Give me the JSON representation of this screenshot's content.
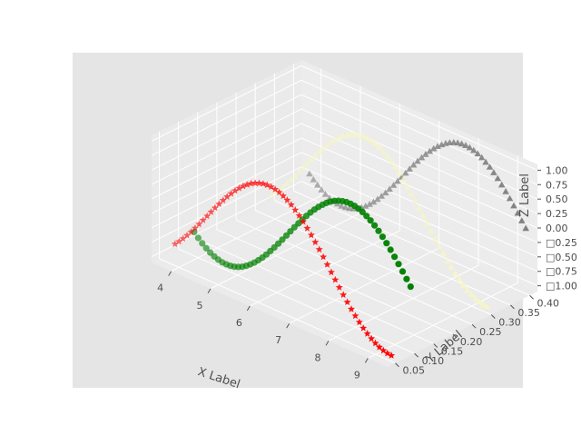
{
  "chart_data": {
    "type": "scatter3d",
    "title": "",
    "xlabel": "X Label",
    "ylabel": "Y Label",
    "zlabel": "Z Label",
    "xlim": [
      3.5,
      9.5
    ],
    "ylim": [
      0.03,
      0.42
    ],
    "zlim": [
      -1.1,
      1.1
    ],
    "x_ticks": [
      "4",
      "5",
      "6",
      "7",
      "8",
      "9"
    ],
    "y_ticks": [
      "0.05",
      "0.10",
      "0.15",
      "0.20",
      "0.25",
      "0.30",
      "0.35",
      "0.40"
    ],
    "z_ticks": [
      "1.00",
      "0.75",
      "0.50",
      "0.25",
      "0.00",
      "□0.25",
      "□0.50",
      "□0.75",
      "□1.00"
    ],
    "grid": true,
    "series": [
      {
        "name": "sin (green circles)",
        "marker": "circle",
        "color": "#008000",
        "function": "z = sin(x)",
        "x_range": [
          3.9,
          9.4
        ],
        "y": 0.1,
        "count": 55
      },
      {
        "name": "cos (red stars)",
        "marker": "star",
        "color": "#ff0000",
        "function": "z = cos(x)",
        "x_range": [
          3.9,
          9.4
        ],
        "y": 0.05,
        "count": 55
      },
      {
        "name": "sin (gray triangles)",
        "marker": "triangle",
        "color": "#808080",
        "function": "z = sin(x)",
        "x_range": [
          3.9,
          9.4
        ],
        "y": 0.4,
        "count": 55
      },
      {
        "name": "cos (light yellow triangles)",
        "marker": "triangle",
        "color": "#f5f5c8",
        "function": "z = cos(x)",
        "x_range": [
          3.9,
          9.4
        ],
        "y": 0.3,
        "count": 55
      }
    ]
  }
}
